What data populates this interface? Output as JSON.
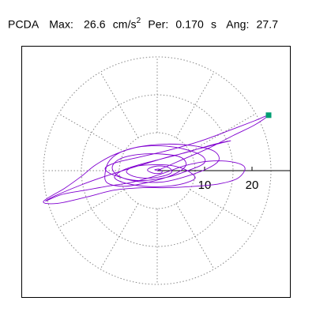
{
  "header": {
    "label": "PCDA",
    "max_label": "Max:",
    "max_value": "26.6",
    "max_unit": "cm/s",
    "max_unit_exp": "2",
    "per_label": "Per:",
    "per_value": "0.170",
    "per_unit": "s",
    "ang_label": "Ang:",
    "ang_value": "27.7"
  },
  "colors": {
    "trace": "#8000d0",
    "marker": "#009e73",
    "grid": "#888888",
    "frame": "#000000"
  },
  "chart_data": {
    "type": "line",
    "coordinate_system": "polar",
    "radial_max": 24,
    "radial_ticks": [
      {
        "value": 10,
        "label": "10"
      },
      {
        "value": 20,
        "label": "20"
      }
    ],
    "grid_circles": [
      8,
      16,
      24
    ],
    "grid_spokes_deg": [
      0,
      30,
      60,
      90,
      120,
      150,
      180,
      210,
      240,
      270,
      300,
      330
    ],
    "axis": "positive-x",
    "peak_point": {
      "x": 23.5,
      "y": 11.7
    },
    "trace_points": [
      [
        0,
        0
      ],
      [
        5,
        2.2
      ],
      [
        11,
        4.8
      ],
      [
        16,
        7.4
      ],
      [
        20.5,
        9.6
      ],
      [
        23.5,
        11.7
      ],
      [
        20.5,
        10.5
      ],
      [
        15,
        8.4
      ],
      [
        9,
        6.2
      ],
      [
        2,
        4.2
      ],
      [
        -4,
        2.8
      ],
      [
        -9,
        1.6
      ],
      [
        -11,
        0.4
      ],
      [
        -9,
        -1
      ],
      [
        -4,
        -2.1
      ],
      [
        2,
        -1.4
      ],
      [
        7,
        0.2
      ],
      [
        10,
        1.7
      ],
      [
        9,
        3.4
      ],
      [
        4,
        4.9
      ],
      [
        -2,
        5.2
      ],
      [
        -7,
        4.2
      ],
      [
        -10,
        2.2
      ],
      [
        -11,
        -0.6
      ],
      [
        -10.5,
        -2.6
      ],
      [
        -7,
        -3.3
      ],
      [
        -2,
        -2.5
      ],
      [
        3,
        -1
      ],
      [
        6,
        1
      ],
      [
        5,
        2.8
      ],
      [
        1,
        3.5
      ],
      [
        -4,
        3.4
      ],
      [
        -8,
        2.4
      ],
      [
        -9.5,
        0.6
      ],
      [
        -8,
        -1.2
      ],
      [
        -4,
        -2.3
      ],
      [
        1,
        -2.4
      ],
      [
        5.5,
        -1.4
      ],
      [
        10.5,
        0.4
      ],
      [
        13,
        2.2
      ],
      [
        12,
        4.1
      ],
      [
        8,
        5.2
      ],
      [
        2,
        5.6
      ],
      [
        -4,
        5
      ],
      [
        -9,
        3.4
      ],
      [
        -13,
        1.2
      ],
      [
        -16,
        -1.2
      ],
      [
        -19.5,
        -3.7
      ],
      [
        -24,
        -6.5
      ],
      [
        -21,
        -6.9
      ],
      [
        -15,
        -5.6
      ],
      [
        -9,
        -4.1
      ],
      [
        -3,
        -3.6
      ],
      [
        2,
        -3.6
      ],
      [
        8,
        -3.3
      ],
      [
        13,
        -2.8
      ],
      [
        17,
        -1.6
      ],
      [
        18.5,
        0.6
      ],
      [
        16,
        1.8
      ],
      [
        11,
        2
      ],
      [
        6,
        1.1
      ],
      [
        2,
        -0.3
      ],
      [
        -2,
        -1.6
      ],
      [
        -6,
        -2.6
      ],
      [
        -10,
        -3.2
      ],
      [
        -15,
        -4.1
      ],
      [
        -20,
        -5
      ],
      [
        -23.5,
        -6.4
      ],
      [
        -21.5,
        -5.3
      ],
      [
        -16,
        -3
      ],
      [
        -11,
        -1.2
      ],
      [
        -6,
        0.4
      ],
      [
        -2,
        1.6
      ],
      [
        2,
        2.8
      ],
      [
        6,
        3.8
      ],
      [
        10,
        5
      ],
      [
        13,
        5.8
      ],
      [
        15.5,
        6.3
      ],
      [
        13,
        5.7
      ],
      [
        8,
        4.4
      ],
      [
        3,
        3
      ],
      [
        -1,
        2
      ],
      [
        -4,
        1.2
      ],
      [
        -7,
        0.2
      ],
      [
        -9,
        -1.2
      ],
      [
        -8,
        -2.2
      ],
      [
        -5,
        -3
      ],
      [
        -1,
        -3.4
      ],
      [
        3,
        -3.2
      ],
      [
        6,
        -2.6
      ],
      [
        8,
        -1.6
      ],
      [
        7,
        -0.4
      ],
      [
        5,
        0.6
      ],
      [
        2,
        1.2
      ],
      [
        -2,
        1.2
      ],
      [
        -5,
        0.8
      ],
      [
        -6.5,
        -0.2
      ],
      [
        -5,
        -1.2
      ],
      [
        -2,
        -1.6
      ],
      [
        1,
        -1.2
      ],
      [
        3,
        -0.4
      ],
      [
        2.5,
        0.6
      ],
      [
        0.5,
        1
      ],
      [
        -1.5,
        0.6
      ],
      [
        -2,
        0
      ],
      [
        -0.5,
        -0.6
      ],
      [
        1,
        -0.4
      ],
      [
        0.5,
        0.3
      ],
      [
        -0.5,
        0.2
      ],
      [
        0,
        0
      ]
    ]
  }
}
